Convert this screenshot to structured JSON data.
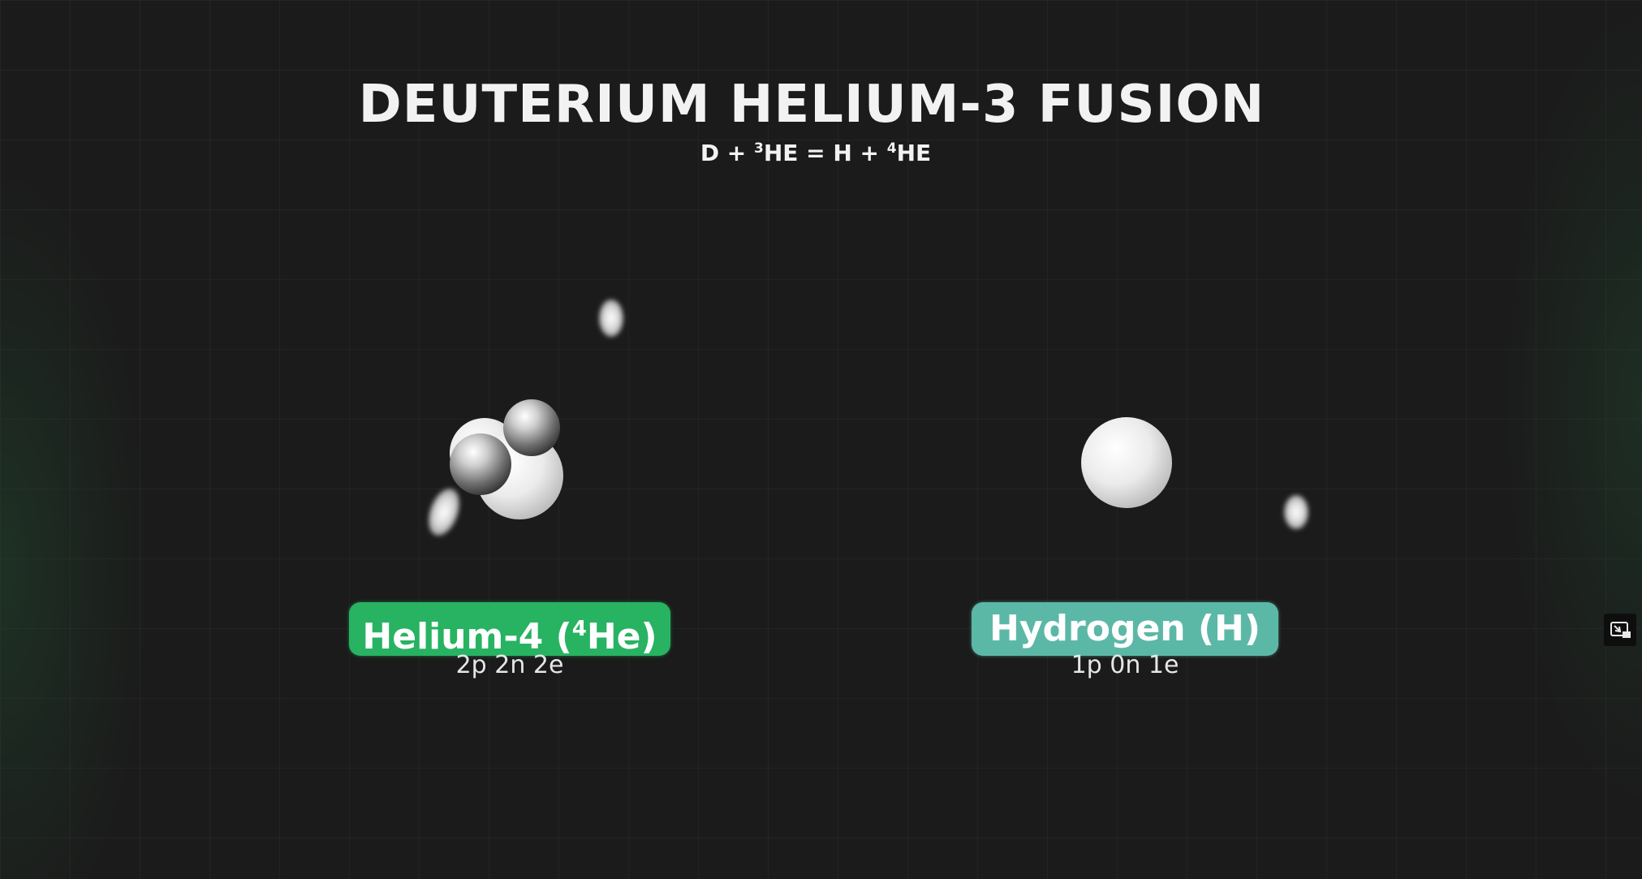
{
  "diagram": {
    "title": "DEUTERIUM HELIUM-3 FUSION",
    "equation": {
      "part1": "D + ",
      "sup1": "3",
      "part2": "HE = H + ",
      "sup2": "4",
      "part3": "HE"
    }
  },
  "products": [
    {
      "name_before": "Helium-4 (",
      "name_sup": "4",
      "name_after": "He)",
      "composition": "2p 2n 2e",
      "tag_color": "#27b362"
    },
    {
      "name": "Hydrogen (H)",
      "composition": "1p 0n 1e",
      "tag_color": "#5cb8a6"
    }
  ],
  "controls": {
    "corner_icon": "picture-in-picture-icon"
  }
}
